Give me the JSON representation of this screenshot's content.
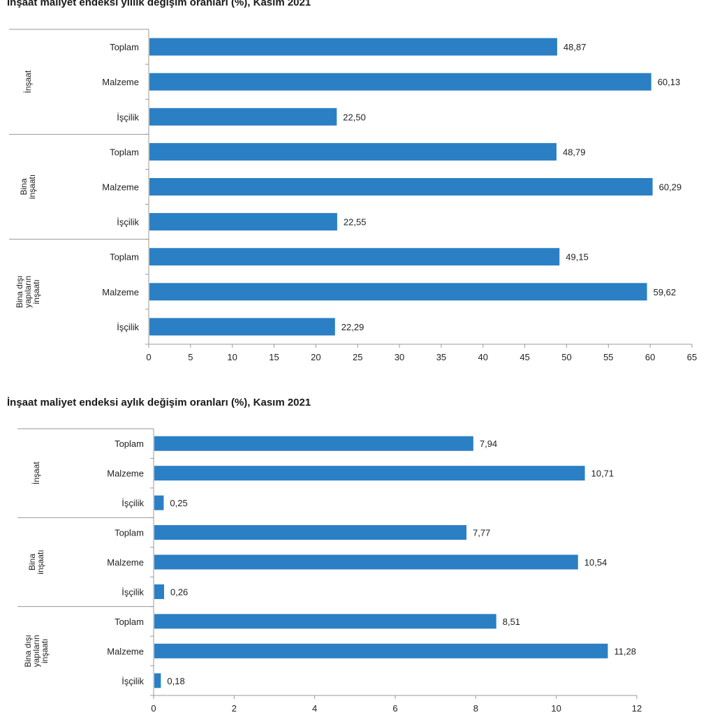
{
  "chart_data": [
    {
      "type": "bar",
      "orientation": "horizontal",
      "title": "İnşaat maliyet endeksi yıllık değişim oranları (%), Kasım 2021",
      "groups": [
        {
          "label": [
            "İnşaat"
          ],
          "categories": [
            "Toplam",
            "Malzeme",
            "İşçilik"
          ],
          "values": [
            48.87,
            60.13,
            22.5
          ],
          "value_labels": [
            "48,87",
            "60,13",
            "22,50"
          ]
        },
        {
          "label": [
            "Bina",
            "inşaatı"
          ],
          "categories": [
            "Toplam",
            "Malzeme",
            "İşçilik"
          ],
          "values": [
            48.79,
            60.29,
            22.55
          ],
          "value_labels": [
            "48,79",
            "60,29",
            "22,55"
          ]
        },
        {
          "label": [
            "Bina dışı",
            "yapıların",
            "inşaatı"
          ],
          "categories": [
            "Toplam",
            "Malzeme",
            "İşçilik"
          ],
          "values": [
            49.15,
            59.62,
            22.29
          ],
          "value_labels": [
            "49,15",
            "59,62",
            "22,29"
          ]
        }
      ],
      "xlim": [
        0,
        65
      ],
      "xticks": [
        0,
        5,
        10,
        15,
        20,
        25,
        30,
        35,
        40,
        45,
        50,
        55,
        60,
        65
      ],
      "grid": false,
      "bar_color": "#2b7fc4"
    },
    {
      "type": "bar",
      "orientation": "horizontal",
      "title": "İnşaat maliyet endeksi aylık değişim oranları (%), Kasım 2021",
      "groups": [
        {
          "label": [
            "İnşaat"
          ],
          "categories": [
            "Toplam",
            "Malzeme",
            "İşçilik"
          ],
          "values": [
            7.94,
            10.71,
            0.25
          ],
          "value_labels": [
            "7,94",
            "10,71",
            "0,25"
          ]
        },
        {
          "label": [
            "Bina",
            "inşaatı"
          ],
          "categories": [
            "Toplam",
            "Malzeme",
            "İşçilik"
          ],
          "values": [
            7.77,
            10.54,
            0.26
          ],
          "value_labels": [
            "7,77",
            "10,54",
            "0,26"
          ]
        },
        {
          "label": [
            "Bina dışı",
            "yapıların",
            "inşaatı"
          ],
          "categories": [
            "Toplam",
            "Malzeme",
            "İşçilik"
          ],
          "values": [
            8.51,
            11.28,
            0.18
          ],
          "value_labels": [
            "8,51",
            "11,28",
            "0,18"
          ]
        }
      ],
      "xlim": [
        0,
        12
      ],
      "xticks": [
        0,
        2,
        4,
        6,
        8,
        10,
        12
      ],
      "grid": false,
      "bar_color": "#2b7fc4"
    }
  ]
}
